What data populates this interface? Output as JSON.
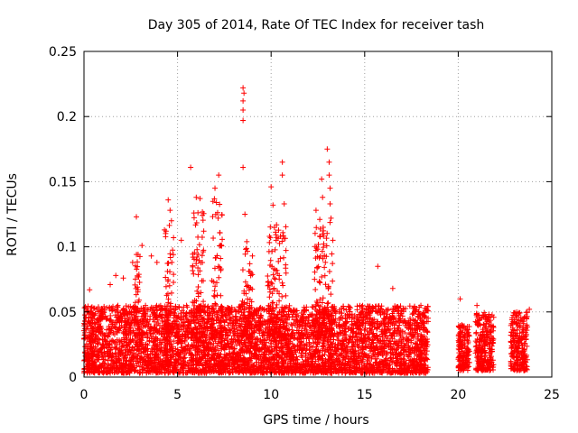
{
  "chart_data": {
    "type": "scatter",
    "title": "Day 305 of 2014, Rate Of TEC Index for receiver tash",
    "xlabel": "GPS time / hours",
    "ylabel": "ROTI / TECUs",
    "xlim": [
      0,
      25
    ],
    "ylim": [
      0,
      0.25
    ],
    "xticks": [
      0,
      5,
      10,
      15,
      20,
      25
    ],
    "xtick_labels": [
      "0",
      "5",
      "10",
      "15",
      "20",
      "25"
    ],
    "yticks": [
      0,
      0.05,
      0.1,
      0.15,
      0.2,
      0.25
    ],
    "ytick_labels": [
      "0",
      "0.05",
      "0.1",
      "0.15",
      "0.2",
      "0.25"
    ],
    "grid": true,
    "marker": "+",
    "color": "#ff0000",
    "data_segments": [
      {
        "x_start": 0.0,
        "x_end": 18.4,
        "y_min": 0.003,
        "y_max": 0.055
      },
      {
        "x_start": 20.0,
        "x_end": 20.6,
        "y_min": 0.005,
        "y_max": 0.04
      },
      {
        "x_start": 20.9,
        "x_end": 21.9,
        "y_min": 0.005,
        "y_max": 0.05
      },
      {
        "x_start": 22.8,
        "x_end": 23.7,
        "y_min": 0.005,
        "y_max": 0.05
      }
    ],
    "peaks": [
      {
        "x": 0.3,
        "y": 0.067
      },
      {
        "x": 1.4,
        "y": 0.071
      },
      {
        "x": 1.7,
        "y": 0.078
      },
      {
        "x": 2.1,
        "y": 0.076
      },
      {
        "x": 2.6,
        "y": 0.088
      },
      {
        "x": 2.8,
        "y": 0.123
      },
      {
        "x": 3.1,
        "y": 0.101
      },
      {
        "x": 3.6,
        "y": 0.093
      },
      {
        "x": 3.9,
        "y": 0.088
      },
      {
        "x": 4.3,
        "y": 0.113
      },
      {
        "x": 4.5,
        "y": 0.136
      },
      {
        "x": 4.6,
        "y": 0.128
      },
      {
        "x": 5.2,
        "y": 0.105
      },
      {
        "x": 5.7,
        "y": 0.161
      },
      {
        "x": 6.0,
        "y": 0.138
      },
      {
        "x": 6.2,
        "y": 0.137
      },
      {
        "x": 6.4,
        "y": 0.112
      },
      {
        "x": 7.0,
        "y": 0.145
      },
      {
        "x": 7.2,
        "y": 0.155
      },
      {
        "x": 8.5,
        "y": 0.222
      },
      {
        "x": 8.55,
        "y": 0.218
      },
      {
        "x": 8.5,
        "y": 0.212
      },
      {
        "x": 8.5,
        "y": 0.205
      },
      {
        "x": 8.5,
        "y": 0.197
      },
      {
        "x": 8.5,
        "y": 0.161
      },
      {
        "x": 8.6,
        "y": 0.125
      },
      {
        "x": 8.7,
        "y": 0.104
      },
      {
        "x": 9.0,
        "y": 0.093
      },
      {
        "x": 10.0,
        "y": 0.146
      },
      {
        "x": 10.1,
        "y": 0.132
      },
      {
        "x": 10.5,
        "y": 0.108
      },
      {
        "x": 10.6,
        "y": 0.165
      },
      {
        "x": 10.6,
        "y": 0.155
      },
      {
        "x": 10.7,
        "y": 0.133
      },
      {
        "x": 12.4,
        "y": 0.128
      },
      {
        "x": 12.6,
        "y": 0.121
      },
      {
        "x": 12.7,
        "y": 0.152
      },
      {
        "x": 12.75,
        "y": 0.138
      },
      {
        "x": 13.0,
        "y": 0.175
      },
      {
        "x": 13.1,
        "y": 0.165
      },
      {
        "x": 13.1,
        "y": 0.155
      },
      {
        "x": 13.15,
        "y": 0.145
      },
      {
        "x": 13.15,
        "y": 0.133
      },
      {
        "x": 13.2,
        "y": 0.122
      },
      {
        "x": 13.3,
        "y": 0.105
      },
      {
        "x": 12.9,
        "y": 0.088
      },
      {
        "x": 15.7,
        "y": 0.085
      },
      {
        "x": 16.5,
        "y": 0.068
      },
      {
        "x": 20.1,
        "y": 0.06
      },
      {
        "x": 21.0,
        "y": 0.055
      },
      {
        "x": 23.8,
        "y": 0.052
      }
    ],
    "spikes": [
      {
        "x_start": 4.3,
        "x_end": 4.8,
        "y_max": 0.12
      },
      {
        "x_start": 5.8,
        "x_end": 6.4,
        "y_max": 0.13
      },
      {
        "x_start": 6.8,
        "x_end": 7.4,
        "y_max": 0.14
      },
      {
        "x_start": 8.4,
        "x_end": 9.0,
        "y_max": 0.1
      },
      {
        "x_start": 9.8,
        "x_end": 10.8,
        "y_max": 0.12
      },
      {
        "x_start": 12.3,
        "x_end": 13.3,
        "y_max": 0.12
      },
      {
        "x_start": 2.7,
        "x_end": 3.0,
        "y_max": 0.1
      }
    ]
  }
}
